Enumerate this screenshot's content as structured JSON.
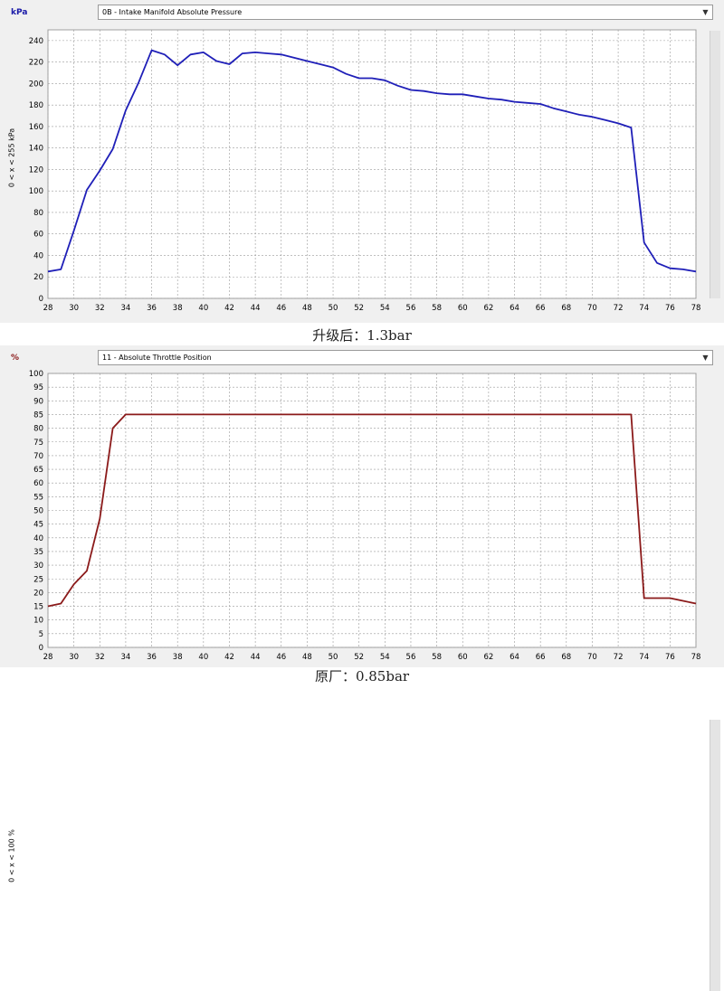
{
  "top_panel": {
    "unit": "kPa",
    "selector_value": "0B - Intake Manifold Absolute Pressure",
    "range_label": "0 < x < 255 kPa",
    "caption": "升级后：1.3bar"
  },
  "bottom_panel": {
    "unit": "%",
    "selector_value": "11 - Absolute Throttle Position",
    "range_label": "0 < x < 100 %",
    "caption": "原厂：0.85bar"
  },
  "chart_data": [
    {
      "type": "line",
      "title": "0B - Intake Manifold Absolute Pressure",
      "ylabel": "0 < x < 255 kPa",
      "xlim": [
        28,
        78
      ],
      "ylim": [
        0,
        250
      ],
      "x_ticks": [
        28,
        30,
        32,
        34,
        36,
        38,
        40,
        42,
        44,
        46,
        48,
        50,
        52,
        54,
        56,
        58,
        60,
        62,
        64,
        66,
        68,
        70,
        72,
        74,
        76,
        78
      ],
      "y_ticks": [
        0,
        20,
        40,
        60,
        80,
        100,
        120,
        140,
        160,
        180,
        200,
        220,
        240
      ],
      "grid": true,
      "line_color": "#1f1fb8",
      "series": [
        {
          "x": [
            28,
            29,
            30,
            31,
            32,
            33,
            34,
            35,
            36,
            37,
            38,
            39,
            40,
            41,
            42,
            43,
            44,
            45,
            46,
            47,
            48,
            49,
            50,
            51,
            52,
            53,
            54,
            55,
            56,
            57,
            58,
            59,
            60,
            61,
            62,
            63,
            64,
            65,
            66,
            67,
            68,
            69,
            70,
            71,
            72,
            73,
            74,
            75,
            76,
            77,
            78
          ],
          "values": [
            25,
            27,
            63,
            101,
            119,
            139,
            175,
            201,
            231,
            227,
            217,
            227,
            229,
            221,
            218,
            228,
            229,
            228,
            227,
            224,
            221,
            218,
            215,
            209,
            205,
            205,
            203,
            198,
            194,
            193,
            191,
            190,
            190,
            188,
            186,
            185,
            183,
            182,
            181,
            177,
            174,
            171,
            169,
            166,
            163,
            159,
            52,
            33,
            28,
            27,
            25
          ]
        }
      ]
    },
    {
      "type": "line",
      "title": "11 - Absolute Throttle Position",
      "ylabel": "0 < x < 100 %",
      "xlim": [
        28,
        78
      ],
      "ylim": [
        0,
        100
      ],
      "x_ticks": [
        28,
        30,
        32,
        34,
        36,
        38,
        40,
        42,
        44,
        46,
        48,
        50,
        52,
        54,
        56,
        58,
        60,
        62,
        64,
        66,
        68,
        70,
        72,
        74,
        76,
        78
      ],
      "y_ticks": [
        0,
        5,
        10,
        15,
        20,
        25,
        30,
        35,
        40,
        45,
        50,
        55,
        60,
        65,
        70,
        75,
        80,
        85,
        90,
        95,
        100
      ],
      "grid": true,
      "line_color": "#8b1a1a",
      "series": [
        {
          "x": [
            28,
            29,
            30,
            31,
            32,
            33,
            34,
            35,
            36,
            40,
            44,
            48,
            52,
            56,
            60,
            64,
            68,
            72,
            73,
            74,
            75,
            76,
            77,
            78
          ],
          "values": [
            15,
            16,
            23,
            28,
            47,
            80,
            85,
            85,
            85,
            85,
            85,
            85,
            85,
            85,
            85,
            85,
            85,
            85,
            85,
            18,
            18,
            18,
            17,
            16
          ]
        }
      ]
    }
  ]
}
